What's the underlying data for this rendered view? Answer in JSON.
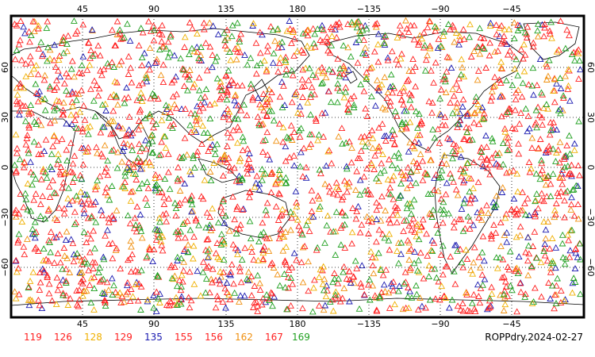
{
  "map": {
    "title": "ROPPdry.2024-02-27",
    "lon_ticks_top": [
      "45",
      "90",
      "135",
      "180",
      "−135",
      "−90",
      "−45"
    ],
    "lon_ticks_bottom": [
      "45",
      "90",
      "135",
      "180",
      "−135",
      "−90",
      "−45"
    ],
    "lat_ticks": [
      "60",
      "30",
      "0",
      "−30",
      "−60"
    ],
    "lat_ticks_right": [
      "60",
      "30",
      "0",
      "−30",
      "−60"
    ],
    "marker_shape": "triangle",
    "border_color": "#000000",
    "grid": true,
    "legend": [
      {
        "label": "119",
        "color": "#ff2020"
      },
      {
        "label": "126",
        "color": "#ff2020"
      },
      {
        "label": "128",
        "color": "#f0b000"
      },
      {
        "label": "129",
        "color": "#ff2020"
      },
      {
        "label": "135",
        "color": "#1a1ab0"
      },
      {
        "label": "155",
        "color": "#ff2020"
      },
      {
        "label": "156",
        "color": "#ff2020"
      },
      {
        "label": "162",
        "color": "#f09010"
      },
      {
        "label": "167",
        "color": "#ff2020"
      },
      {
        "label": "169",
        "color": "#20a020"
      }
    ]
  }
}
